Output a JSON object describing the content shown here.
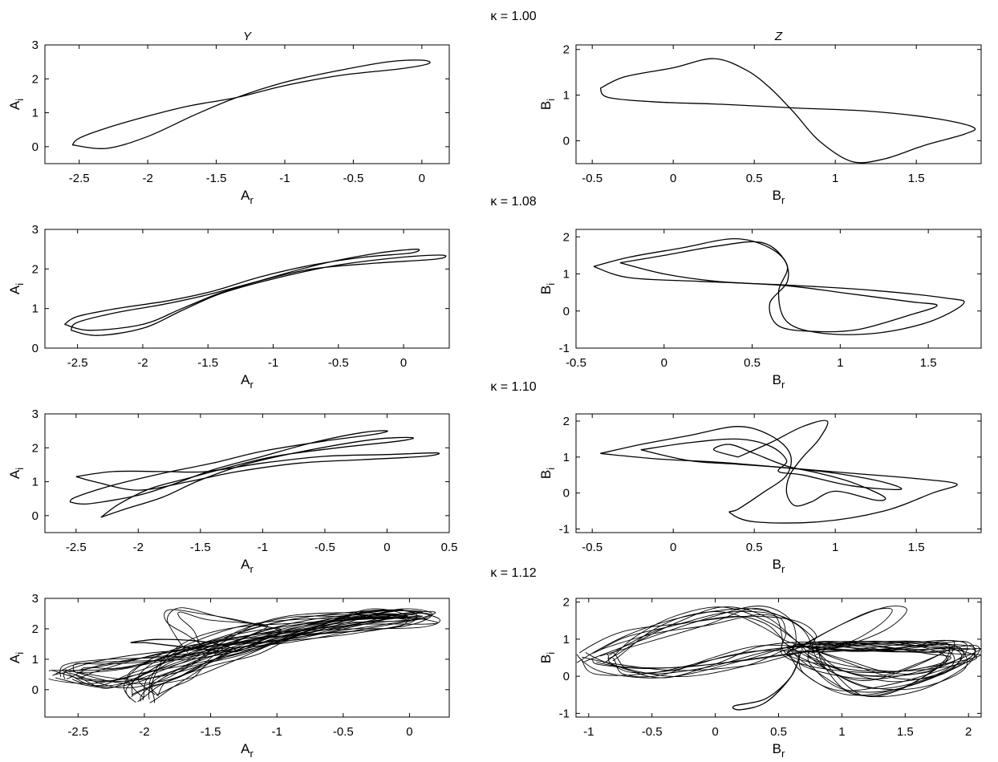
{
  "column_titles": [
    "Y",
    "Z"
  ],
  "chart_data": [
    {
      "type": "line",
      "kappa_title": "κ = 1.00",
      "xlabel": "A",
      "xlabel_sub": "r",
      "ylabel": "A",
      "ylabel_sub": "i",
      "xlim": [
        -2.75,
        0.2
      ],
      "ylim": [
        -0.5,
        3
      ],
      "xticks": [
        -2.5,
        -2,
        -1.5,
        -1,
        -0.5,
        0
      ],
      "yticks": [
        0,
        1,
        2,
        3
      ],
      "series": [
        {
          "loops": 1,
          "x": [
            -2.55,
            -2.3,
            -2.0,
            -1.65,
            -1.35,
            -1.0,
            -0.6,
            -0.25,
            0.0,
            0.05,
            -0.15,
            -0.6,
            -1.0,
            -1.35,
            -1.7,
            -2.0,
            -2.3,
            -2.5,
            -2.55
          ],
          "y": [
            0.05,
            -0.05,
            0.3,
            0.95,
            1.45,
            1.9,
            2.25,
            2.5,
            2.55,
            2.45,
            2.3,
            2.1,
            1.8,
            1.45,
            1.2,
            0.9,
            0.55,
            0.25,
            0.05
          ]
        }
      ]
    },
    {
      "type": "line",
      "xlabel": "B",
      "xlabel_sub": "r",
      "ylabel": "B",
      "ylabel_sub": "i",
      "xlim": [
        -0.6,
        1.9
      ],
      "ylim": [
        -0.5,
        2.1
      ],
      "xticks": [
        -0.5,
        0,
        0.5,
        1,
        1.5
      ],
      "yticks": [
        0,
        1,
        2
      ],
      "series": [
        {
          "loops": 1,
          "x": [
            -0.45,
            -0.3,
            0.0,
            0.25,
            0.45,
            0.6,
            0.75,
            0.9,
            1.1,
            1.3,
            1.55,
            1.8,
            1.85,
            1.6,
            1.2,
            0.75,
            0.3,
            -0.1,
            -0.4,
            -0.45
          ],
          "y": [
            1.15,
            1.4,
            1.6,
            1.8,
            1.55,
            1.15,
            0.6,
            0.0,
            -0.45,
            -0.4,
            -0.1,
            0.15,
            0.3,
            0.5,
            0.65,
            0.72,
            0.8,
            0.85,
            0.95,
            1.15
          ]
        }
      ]
    },
    {
      "type": "line",
      "kappa_title": "κ = 1.08",
      "xlabel": "A",
      "xlabel_sub": "r",
      "ylabel": "A",
      "ylabel_sub": "i",
      "xlim": [
        -2.75,
        0.35
      ],
      "ylim": [
        0,
        3
      ],
      "xticks": [
        -2.5,
        -2,
        -1.5,
        -1,
        -0.5,
        0
      ],
      "yticks": [
        0,
        1,
        2,
        3
      ],
      "series": [
        {
          "loops": 1,
          "x": [
            -2.6,
            -2.4,
            -2.0,
            -1.7,
            -1.4,
            -1.0,
            -0.6,
            -0.2,
            0.1,
            0.05,
            -0.3,
            -0.7,
            -1.1,
            -1.45,
            -1.8,
            -2.2,
            -2.5,
            -2.6
          ],
          "y": [
            0.6,
            0.45,
            0.6,
            1.0,
            1.4,
            1.8,
            2.15,
            2.4,
            2.5,
            2.4,
            2.3,
            2.1,
            1.8,
            1.45,
            1.2,
            1.0,
            0.8,
            0.6
          ]
        },
        {
          "loops": 1,
          "x": [
            -2.55,
            -2.35,
            -2.0,
            -1.7,
            -1.4,
            -1.0,
            -0.5,
            0.0,
            0.3,
            0.25,
            -0.2,
            -0.7,
            -1.1,
            -1.5,
            -1.85,
            -2.2,
            -2.5,
            -2.55
          ],
          "y": [
            0.45,
            0.32,
            0.5,
            0.95,
            1.38,
            1.75,
            2.1,
            2.3,
            2.35,
            2.25,
            2.15,
            2.0,
            1.7,
            1.35,
            1.1,
            0.9,
            0.65,
            0.45
          ]
        }
      ]
    },
    {
      "type": "line",
      "xlabel": "B",
      "xlabel_sub": "r",
      "ylabel": "B",
      "ylabel_sub": "i",
      "xlim": [
        -0.5,
        1.8
      ],
      "ylim": [
        -1,
        2.2
      ],
      "xticks": [
        -0.5,
        0,
        0.5,
        1,
        1.5
      ],
      "yticks": [
        -1,
        0,
        1,
        2
      ],
      "series": [
        {
          "loops": 1,
          "x": [
            -0.4,
            -0.2,
            0.1,
            0.4,
            0.6,
            0.7,
            0.65,
            0.7,
            0.9,
            1.2,
            1.5,
            1.7,
            1.6,
            1.2,
            0.7,
            0.2,
            -0.2,
            -0.4
          ],
          "y": [
            1.2,
            1.45,
            1.7,
            1.95,
            1.7,
            1.2,
            0.5,
            -0.3,
            -0.6,
            -0.6,
            -0.3,
            0.2,
            0.35,
            0.55,
            0.7,
            0.8,
            0.9,
            1.2
          ]
        },
        {
          "loops": 1,
          "x": [
            -0.25,
            0.0,
            0.3,
            0.55,
            0.68,
            0.7,
            0.6,
            0.65,
            0.85,
            1.1,
            1.4,
            1.55,
            1.4,
            1.0,
            0.7,
            0.3,
            0.0,
            -0.25
          ],
          "y": [
            1.3,
            1.5,
            1.75,
            1.85,
            1.4,
            0.8,
            0.2,
            -0.4,
            -0.55,
            -0.5,
            -0.1,
            0.15,
            0.25,
            0.5,
            0.68,
            0.8,
            1.0,
            1.3
          ]
        }
      ]
    },
    {
      "type": "line",
      "kappa_title": "κ = 1.10",
      "xlabel": "A",
      "xlabel_sub": "r",
      "ylabel": "A",
      "ylabel_sub": "i",
      "xlim": [
        -2.75,
        0.5
      ],
      "ylim": [
        -0.5,
        3
      ],
      "xticks": [
        -2.5,
        -2,
        -1.5,
        -1,
        -0.5,
        0,
        0.5
      ],
      "yticks": [
        0,
        1,
        2,
        3
      ],
      "series": [
        {
          "loops": 1,
          "x": [
            -2.55,
            -2.4,
            -2.0,
            -1.7,
            -1.4,
            -1.0,
            -0.6,
            -0.2,
            0.0,
            -0.1,
            -0.5,
            -1.0,
            -1.4,
            -1.8,
            -2.2,
            -2.5,
            -2.55
          ],
          "y": [
            0.4,
            0.35,
            0.6,
            0.95,
            1.35,
            1.75,
            2.15,
            2.45,
            2.5,
            2.4,
            2.2,
            1.9,
            1.55,
            1.25,
            0.9,
            0.55,
            0.4
          ]
        },
        {
          "loops": 1,
          "x": [
            -2.3,
            -2.1,
            -1.8,
            -1.5,
            -1.1,
            -0.6,
            -0.1,
            0.2,
            0.1,
            -0.4,
            -0.9,
            -1.3,
            -1.6,
            -1.9,
            -2.15,
            -2.3
          ],
          "y": [
            -0.05,
            0.2,
            0.55,
            1.05,
            1.55,
            1.95,
            2.25,
            2.3,
            2.2,
            2.0,
            1.75,
            1.4,
            1.1,
            0.8,
            0.35,
            -0.05
          ]
        },
        {
          "loops": 1,
          "x": [
            -2.5,
            -2.2,
            -1.8,
            -1.45,
            -1.0,
            -0.5,
            0.0,
            0.4,
            0.3,
            -0.2,
            -0.7,
            -1.2,
            -1.6,
            -2.0,
            -2.35,
            -2.5
          ],
          "y": [
            1.15,
            1.3,
            1.3,
            1.3,
            1.55,
            1.75,
            1.8,
            1.85,
            1.75,
            1.65,
            1.55,
            1.3,
            1.0,
            0.75,
            1.0,
            1.15
          ]
        }
      ]
    },
    {
      "type": "line",
      "xlabel": "B",
      "xlabel_sub": "r",
      "ylabel": "B",
      "ylabel_sub": "i",
      "xlim": [
        -0.6,
        1.9
      ],
      "ylim": [
        -1.1,
        2.2
      ],
      "xticks": [
        -0.5,
        0,
        0.5,
        1,
        1.5
      ],
      "yticks": [
        -1,
        0,
        1,
        2
      ],
      "series": [
        {
          "loops": 1,
          "x": [
            -0.45,
            -0.2,
            0.1,
            0.4,
            0.6,
            0.72,
            0.7,
            0.55,
            0.4,
            0.35,
            0.5,
            0.9,
            1.3,
            1.6,
            1.75,
            1.5,
            1.1,
            0.7,
            0.3,
            -0.1,
            -0.45
          ],
          "y": [
            1.1,
            1.35,
            1.6,
            1.85,
            1.6,
            1.1,
            0.5,
            0.0,
            -0.45,
            -0.55,
            -0.8,
            -0.8,
            -0.5,
            0.0,
            0.25,
            0.4,
            0.55,
            0.7,
            0.85,
            0.95,
            1.1
          ]
        },
        {
          "loops": 1,
          "x": [
            0.4,
            0.6,
            0.8,
            0.95,
            0.9,
            0.8,
            0.72,
            0.7,
            0.75,
            0.85,
            1.0,
            1.25,
            1.3,
            1.1,
            0.9,
            0.7,
            0.5,
            0.35,
            0.25,
            0.4
          ],
          "y": [
            1.0,
            1.4,
            1.85,
            2.0,
            1.5,
            1.0,
            0.5,
            0.0,
            -0.35,
            -0.25,
            0.05,
            -0.2,
            -0.1,
            0.3,
            0.55,
            0.75,
            1.1,
            1.35,
            1.2,
            1.0
          ]
        },
        {
          "loops": 1,
          "x": [
            -0.2,
            0.1,
            0.4,
            0.6,
            0.7,
            0.65,
            0.8,
            1.1,
            1.4,
            1.3,
            1.0,
            0.7,
            0.4,
            0.1,
            -0.2
          ],
          "y": [
            1.2,
            1.4,
            1.5,
            1.3,
            0.9,
            0.6,
            0.5,
            0.2,
            0.1,
            0.3,
            0.55,
            0.7,
            0.8,
            0.9,
            1.2
          ]
        }
      ]
    },
    {
      "type": "line",
      "kappa_title": "κ = 1.12",
      "xlabel": "A",
      "xlabel_sub": "r",
      "ylabel": "A",
      "ylabel_sub": "i",
      "xlim": [
        -2.75,
        0.3
      ],
      "ylim": [
        -0.9,
        3
      ],
      "xticks": [
        -2.5,
        -2,
        -1.5,
        -1,
        -0.5,
        0
      ],
      "yticks": [
        0,
        1,
        2,
        3
      ],
      "series": [
        {
          "loops": 10,
          "jitter": 0.16,
          "x": [
            -2.6,
            -2.3,
            -2.0,
            -1.7,
            -1.4,
            -1.0,
            -0.6,
            -0.2,
            0.1,
            0.0,
            -0.5,
            -1.0,
            -1.4,
            -1.8,
            -2.2,
            -2.5,
            -2.6
          ],
          "y": [
            0.5,
            0.2,
            0.4,
            0.8,
            1.3,
            1.8,
            2.2,
            2.5,
            2.4,
            2.2,
            2.0,
            1.7,
            1.4,
            1.1,
            0.85,
            0.7,
            0.5
          ]
        },
        {
          "loops": 8,
          "jitter": 0.14,
          "x": [
            -2.0,
            -1.9,
            -1.7,
            -1.5,
            -1.2,
            -0.8,
            -0.3,
            0.0,
            -0.3,
            -0.8,
            -1.2,
            -1.5,
            -1.75,
            -1.95,
            -2.05,
            -2.0
          ],
          "y": [
            -0.3,
            0.1,
            0.5,
            0.9,
            1.3,
            1.9,
            2.4,
            2.5,
            2.45,
            2.3,
            2.0,
            1.6,
            1.2,
            0.7,
            0.2,
            -0.3
          ]
        },
        {
          "loops": 3,
          "jitter": 0.1,
          "x": [
            -1.6,
            -1.7,
            -1.8,
            -1.75,
            -1.5,
            -1.2,
            -1.0,
            -1.2,
            -1.5,
            -1.6
          ],
          "y": [
            1.3,
            1.85,
            2.3,
            2.6,
            2.4,
            2.2,
            2.0,
            1.7,
            1.45,
            1.3
          ]
        },
        {
          "loops": 1,
          "x": [
            -2.0,
            -2.1,
            -1.9,
            -1.6,
            -1.4,
            -1.3,
            -1.5,
            -1.8,
            -2.0
          ],
          "y": [
            1.55,
            1.55,
            1.65,
            1.6,
            1.45,
            1.25,
            1.3,
            1.45,
            1.55
          ]
        }
      ]
    },
    {
      "type": "line",
      "xlabel": "B",
      "xlabel_sub": "r",
      "ylabel": "B",
      "ylabel_sub": "i",
      "xlim": [
        -1.1,
        2.1
      ],
      "ylim": [
        -1.1,
        2.1
      ],
      "xticks": [
        -1,
        -0.5,
        0,
        0.5,
        1,
        1.5,
        2
      ],
      "yticks": [
        -1,
        0,
        1,
        2
      ],
      "series": [
        {
          "loops": 10,
          "jitter": 0.18,
          "x": [
            -0.95,
            -0.6,
            -0.2,
            0.2,
            0.5,
            0.65,
            0.68,
            0.9,
            1.3,
            1.7,
            1.95,
            1.8,
            1.4,
            0.9,
            0.5,
            0.1,
            -0.4,
            -0.8,
            -0.95
          ],
          "y": [
            0.5,
            1.1,
            1.5,
            1.75,
            1.5,
            1.0,
            0.7,
            0.3,
            0.0,
            0.2,
            0.6,
            0.75,
            0.8,
            0.8,
            0.7,
            0.4,
            0.1,
            0.2,
            0.5
          ]
        },
        {
          "loops": 8,
          "jitter": 0.15,
          "x": [
            0.68,
            0.8,
            1.1,
            1.5,
            1.9,
            1.95,
            1.7,
            1.3,
            0.95,
            0.75,
            0.68
          ],
          "y": [
            0.7,
            0.2,
            -0.4,
            -0.3,
            0.3,
            0.8,
            0.85,
            0.8,
            0.78,
            0.75,
            0.7
          ]
        },
        {
          "loops": 1,
          "x": [
            0.68,
            0.6,
            0.4,
            0.15,
            0.2,
            0.4,
            0.6,
            0.68
          ],
          "y": [
            0.7,
            0.0,
            -0.6,
            -0.8,
            -0.9,
            -0.7,
            0.0,
            0.7
          ]
        },
        {
          "loops": 2,
          "jitter": 0.08,
          "x": [
            0.68,
            1.0,
            1.3,
            1.45,
            1.3,
            1.0,
            0.68
          ],
          "y": [
            0.8,
            1.4,
            1.8,
            1.75,
            1.3,
            0.9,
            0.8
          ]
        }
      ]
    }
  ]
}
